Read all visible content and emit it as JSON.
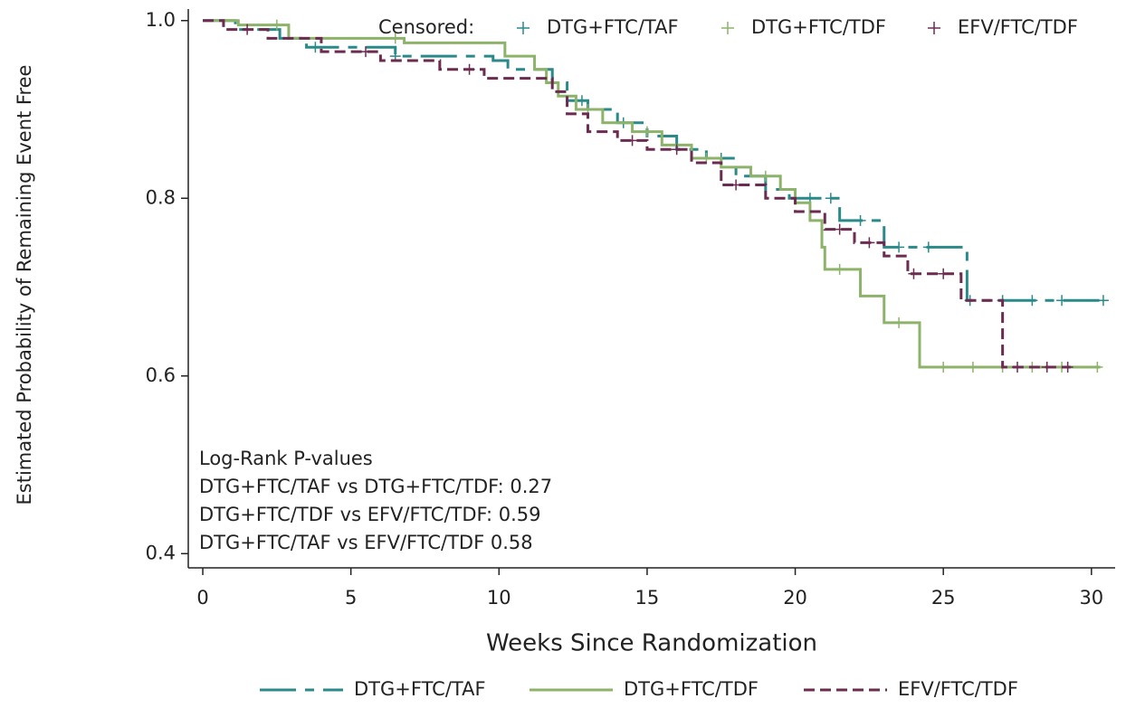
{
  "chart_data": {
    "type": "km",
    "xlabel": "Weeks Since Randomization",
    "ylabel": "Estimated Probability of Remaining Event Free",
    "xlim": [
      -0.49,
      30.8
    ],
    "ylim": [
      0.384,
      1.013
    ],
    "xticks": [
      0,
      5,
      10,
      15,
      20,
      25,
      30
    ],
    "yticks": [
      0.4,
      0.6,
      0.8,
      {
        "value": 1,
        "label": "1.0"
      }
    ],
    "censored_label": "Censored:",
    "annotations": [
      "Log-Rank P-values",
      "DTG+FTC/TAF vs DTG+FTC/TDF: 0.27",
      "DTG+FTC/TDF vs EFV/FTC/TDF: 0.59",
      "DTG+FTC/TAF vs EFV/FTC/TDF 0.58"
    ],
    "series": [
      {
        "name": "DTG+FTC/TAF",
        "color": "#2a8a8a",
        "dash": "40 10 10 10",
        "x": [
          0,
          1.1,
          2.6,
          3.5,
          6.5,
          9.8,
          10.3,
          11.8,
          12.3,
          13.0,
          14.0,
          15.0,
          16.0,
          17.0,
          18.0,
          19.0,
          19.8,
          21.5,
          23.0,
          25.8,
          30.4
        ],
        "values": [
          1.0,
          0.99,
          0.98,
          0.97,
          0.96,
          0.955,
          0.945,
          0.93,
          0.91,
          0.9,
          0.885,
          0.87,
          0.855,
          0.845,
          0.825,
          0.81,
          0.8,
          0.775,
          0.745,
          0.685,
          0.685
        ],
        "censored": {
          "x": [
            3.8,
            6.5,
            12.8,
            14.2,
            17.5,
            20.5,
            21.2,
            22.2,
            23.5,
            24.5,
            25.9,
            27,
            28,
            29,
            30.4
          ],
          "values": [
            0.97,
            0.96,
            0.91,
            0.885,
            0.845,
            0.8,
            0.8,
            0.775,
            0.745,
            0.745,
            0.685,
            0.685,
            0.685,
            0.685,
            0.685
          ]
        }
      },
      {
        "name": "DTG+FTC/TDF",
        "color": "#8db36a",
        "dash": "none",
        "x": [
          0,
          1.2,
          2.9,
          6.8,
          10.2,
          11.2,
          11.6,
          12.0,
          12.6,
          13.5,
          14.5,
          15.5,
          16.5,
          17.5,
          18.5,
          19.5,
          20.0,
          20.5,
          20.9,
          21.0,
          22.2,
          23.0,
          24.2,
          30.3
        ],
        "values": [
          1.0,
          0.995,
          0.98,
          0.975,
          0.96,
          0.945,
          0.93,
          0.915,
          0.9,
          0.885,
          0.875,
          0.86,
          0.845,
          0.835,
          0.825,
          0.81,
          0.795,
          0.775,
          0.745,
          0.72,
          0.69,
          0.66,
          0.61,
          0.61
        ],
        "censored": {
          "x": [
            2.5,
            6.5,
            13,
            15,
            17,
            19,
            21.5,
            23.5,
            25,
            26,
            27,
            28,
            29,
            30.2
          ],
          "values": [
            0.995,
            0.98,
            0.9,
            0.875,
            0.845,
            0.825,
            0.72,
            0.66,
            0.61,
            0.61,
            0.61,
            0.61,
            0.61,
            0.61
          ]
        }
      },
      {
        "name": "EFV/FTC/TDF",
        "color": "#6b2c50",
        "dash": "12 6",
        "x": [
          0,
          0.7,
          2.2,
          4.0,
          6.0,
          8.0,
          9.5,
          11.8,
          12.3,
          13.0,
          14.0,
          15.0,
          16.5,
          17.5,
          19.0,
          20.0,
          21.0,
          22.0,
          23.0,
          23.8,
          25.6,
          27.0,
          29.3
        ],
        "values": [
          1.0,
          0.99,
          0.98,
          0.965,
          0.955,
          0.945,
          0.935,
          0.92,
          0.895,
          0.875,
          0.865,
          0.855,
          0.84,
          0.815,
          0.8,
          0.785,
          0.765,
          0.75,
          0.735,
          0.715,
          0.685,
          0.61,
          0.61
        ],
        "censored": {
          "x": [
            1.5,
            5.5,
            9,
            14.5,
            16,
            18,
            21.5,
            22.5,
            24,
            25,
            27.5,
            28.5,
            29.2
          ],
          "values": [
            0.99,
            0.965,
            0.945,
            0.865,
            0.855,
            0.815,
            0.765,
            0.75,
            0.715,
            0.715,
            0.61,
            0.61,
            0.61
          ]
        }
      }
    ]
  }
}
